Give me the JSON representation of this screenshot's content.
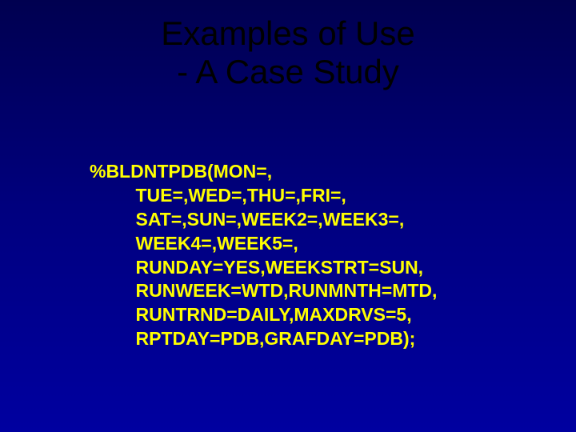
{
  "slide": {
    "title_line1": "Examples of Use",
    "title_line2": "- A Case Study",
    "code_line1": "%BLDNTPDB(MON=,",
    "code_line2": "         TUE=,WED=,THU=,FRI=,",
    "code_line3": "         SAT=,SUN=,WEEK2=,WEEK3=,",
    "code_line4": "         WEEK4=,WEEK5=,",
    "code_line5": "         RUNDAY=YES,WEEKSTRT=SUN,",
    "code_line6": "         RUNWEEK=WTD,RUNMNTH=MTD,",
    "code_line7": "         RUNTRND=DAILY,MAXDRVS=5,",
    "code_line8": "         RPTDAY=PDB,GRAFDAY=PDB);",
    "background_gradient_top": "#000050",
    "background_gradient_mid": "#000080",
    "background_gradient_bottom": "#0000a0",
    "title_color": "#000000",
    "body_color": "#ffff00",
    "title_fontsize": 42,
    "body_fontsize": 23
  }
}
